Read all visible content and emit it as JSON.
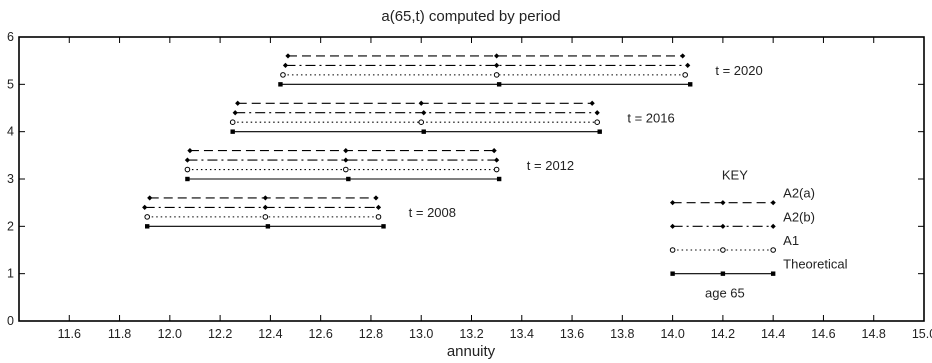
{
  "chart_data": {
    "type": "line",
    "title": "a(65,t) computed by period",
    "xlabel": "annuity",
    "ylabel": "",
    "xlim": [
      11.4,
      15.0
    ],
    "ylim": [
      0,
      6
    ],
    "xticks": [
      11.6,
      11.8,
      12.0,
      12.2,
      12.4,
      12.6,
      12.8,
      13.0,
      13.2,
      13.4,
      13.6,
      13.8,
      14.0,
      14.2,
      14.4,
      14.6,
      14.8,
      15.0
    ],
    "yticks": [
      0,
      1,
      2,
      3,
      4,
      5,
      6
    ],
    "grid": false,
    "series": [
      {
        "name": "A2(a)",
        "line_style": "dashed",
        "marker": "diamond",
        "points": [
          {
            "period": "t = 2008",
            "y": 2.6,
            "low": 11.92,
            "mid": 12.38,
            "high": 12.82
          },
          {
            "period": "t = 2012",
            "y": 3.6,
            "low": 12.08,
            "mid": 12.7,
            "high": 13.29
          },
          {
            "period": "t = 2016",
            "y": 4.6,
            "low": 12.27,
            "mid": 13.0,
            "high": 13.68
          },
          {
            "period": "t = 2020",
            "y": 5.6,
            "low": 12.47,
            "mid": 13.3,
            "high": 14.04
          }
        ]
      },
      {
        "name": "A2(b)",
        "line_style": "dash-dot",
        "marker": "diamond",
        "points": [
          {
            "period": "t = 2008",
            "y": 2.4,
            "low": 11.9,
            "mid": 12.38,
            "high": 12.83
          },
          {
            "period": "t = 2012",
            "y": 3.4,
            "low": 12.07,
            "mid": 12.7,
            "high": 13.3
          },
          {
            "period": "t = 2016",
            "y": 4.4,
            "low": 12.26,
            "mid": 13.01,
            "high": 13.7
          },
          {
            "period": "t = 2020",
            "y": 5.4,
            "low": 12.46,
            "mid": 13.3,
            "high": 14.06
          }
        ]
      },
      {
        "name": "A1",
        "line_style": "dotted",
        "marker": "circle",
        "points": [
          {
            "period": "t = 2008",
            "y": 2.2,
            "low": 11.91,
            "mid": 12.38,
            "high": 12.83
          },
          {
            "period": "t = 2012",
            "y": 3.2,
            "low": 12.07,
            "mid": 12.7,
            "high": 13.3
          },
          {
            "period": "t = 2016",
            "y": 4.2,
            "low": 12.25,
            "mid": 13.0,
            "high": 13.7
          },
          {
            "period": "t = 2020",
            "y": 5.2,
            "low": 12.45,
            "mid": 13.3,
            "high": 14.05
          }
        ]
      },
      {
        "name": "Theoretical",
        "line_style": "solid",
        "marker": "square",
        "points": [
          {
            "period": "t = 2008",
            "y": 2.0,
            "low": 11.91,
            "mid": 12.39,
            "high": 12.85
          },
          {
            "period": "t = 2012",
            "y": 3.0,
            "low": 12.07,
            "mid": 12.71,
            "high": 13.31
          },
          {
            "period": "t = 2016",
            "y": 4.0,
            "low": 12.25,
            "mid": 13.01,
            "high": 13.71
          },
          {
            "period": "t = 2020",
            "y": 5.0,
            "low": 12.44,
            "mid": 13.31,
            "high": 14.07
          }
        ]
      }
    ],
    "annotations": [
      {
        "text": "t = 2008",
        "x": 12.95,
        "y": 2.3
      },
      {
        "text": "t = 2012",
        "x": 13.42,
        "y": 3.3
      },
      {
        "text": "t = 2016",
        "x": 13.82,
        "y": 4.3
      },
      {
        "text": "t = 2020",
        "x": 14.17,
        "y": 5.3
      }
    ],
    "key": {
      "title": "KEY",
      "footer": "age 65",
      "placement": "right",
      "entries": [
        {
          "label": "A2(a)",
          "series": "A2(a)",
          "y": 2.5
        },
        {
          "label": "A2(b)",
          "series": "A2(b)",
          "y": 2.0
        },
        {
          "label": "A1",
          "series": "A1",
          "y": 1.5
        },
        {
          "label": "Theoretical",
          "series": "Theoretical",
          "y": 1.0
        }
      ],
      "x_start": 14.0,
      "x_mid": 14.2,
      "x_end": 14.4,
      "title_y": 3.1,
      "footer_y": 0.6
    }
  }
}
